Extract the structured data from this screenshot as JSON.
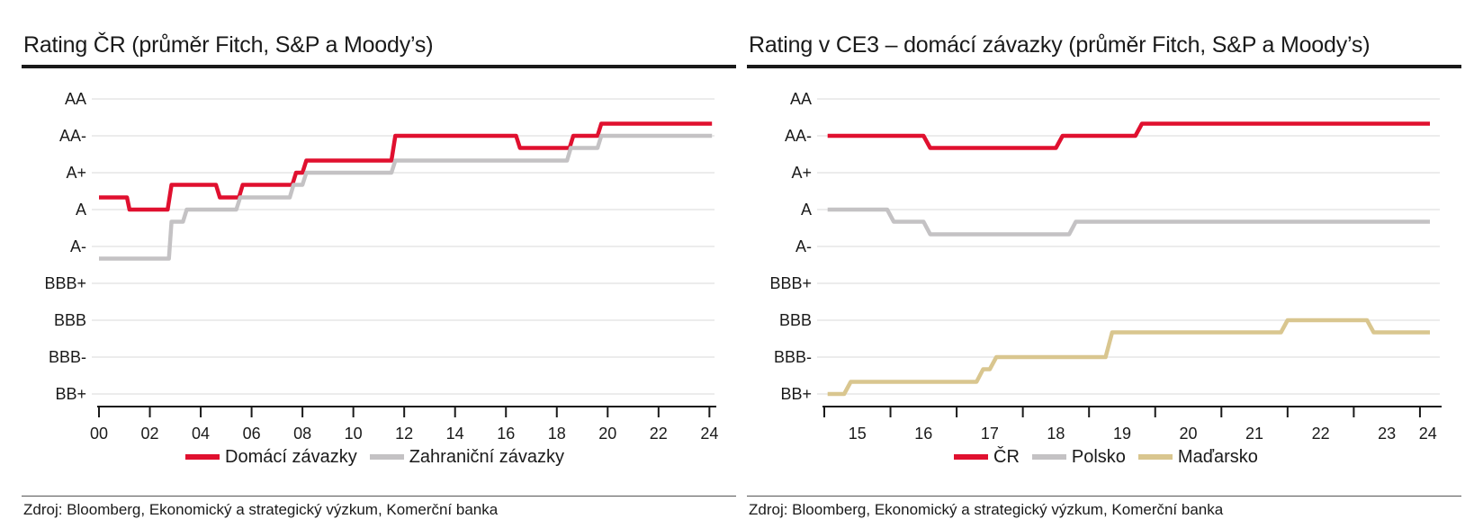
{
  "left": {
    "title": "Rating ČR (průměr Fitch, S&P a Moody’s)",
    "source": "Zdroj: Bloomberg, Ekonomický a strategický výzkum, Komerční banka",
    "legend": [
      {
        "name": "Domácí závazky",
        "color": "#e0102f"
      },
      {
        "name": "Zahraniční závazky",
        "color": "#c4c2c4"
      }
    ]
  },
  "right": {
    "title": "Rating v CE3 – domácí závazky (průměr Fitch, S&P a Moody’s)",
    "source": "Zdroj: Bloomberg, Ekonomický a strategický výzkum, Komerční banka",
    "legend": [
      {
        "name": "ČR",
        "color": "#e0102f"
      },
      {
        "name": "Polsko",
        "color": "#c4c2c4"
      },
      {
        "name": "Maďarsko",
        "color": "#d9c68f"
      }
    ]
  },
  "chart_data": [
    {
      "type": "line",
      "title": "Rating ČR (průměr Fitch, S&P a Moody’s)",
      "y_categories": [
        "BB+",
        "BBB-",
        "BBB",
        "BBB+",
        "A-",
        "A",
        "A+",
        "AA-",
        "AA"
      ],
      "x_ticks": [
        "00",
        "02",
        "04",
        "06",
        "08",
        "10",
        "12",
        "14",
        "16",
        "18",
        "20",
        "22",
        "24"
      ],
      "xlim": [
        2000,
        2024.2
      ],
      "ylim": [
        0,
        8
      ],
      "grid": true,
      "legend_position": "bottom",
      "series": [
        {
          "name": "Domácí závazky",
          "color": "#e0102f",
          "points": [
            [
              2000,
              5.33
            ],
            [
              2001.1,
              5.33
            ],
            [
              2001.2,
              5.0
            ],
            [
              2002.7,
              5.0
            ],
            [
              2002.85,
              5.67
            ],
            [
              2004.6,
              5.67
            ],
            [
              2004.75,
              5.33
            ],
            [
              2005.5,
              5.33
            ],
            [
              2005.65,
              5.67
            ],
            [
              2007.6,
              5.67
            ],
            [
              2007.75,
              6.0
            ],
            [
              2008.0,
              6.0
            ],
            [
              2008.15,
              6.33
            ],
            [
              2011.5,
              6.33
            ],
            [
              2011.65,
              7.0
            ],
            [
              2016.4,
              7.0
            ],
            [
              2016.55,
              6.67
            ],
            [
              2018.5,
              6.67
            ],
            [
              2018.65,
              7.0
            ],
            [
              2019.6,
              7.0
            ],
            [
              2019.75,
              7.33
            ],
            [
              2024.1,
              7.33
            ]
          ]
        },
        {
          "name": "Zahraniční závazky",
          "color": "#c4c2c4",
          "points": [
            [
              2000,
              3.67
            ],
            [
              2002.75,
              3.67
            ],
            [
              2002.85,
              4.67
            ],
            [
              2003.3,
              4.67
            ],
            [
              2003.45,
              5.0
            ],
            [
              2005.4,
              5.0
            ],
            [
              2005.55,
              5.33
            ],
            [
              2007.5,
              5.33
            ],
            [
              2007.65,
              5.67
            ],
            [
              2008.0,
              5.67
            ],
            [
              2008.15,
              6.0
            ],
            [
              2011.5,
              6.0
            ],
            [
              2011.65,
              6.33
            ],
            [
              2018.4,
              6.33
            ],
            [
              2018.55,
              6.67
            ],
            [
              2019.6,
              6.67
            ],
            [
              2019.75,
              7.0
            ],
            [
              2024.1,
              7.0
            ]
          ]
        }
      ]
    },
    {
      "type": "line",
      "title": "Rating v CE3 – domácí závazky (průměr Fitch, S&P a Moody’s)",
      "y_categories": [
        "BB+",
        "BBB-",
        "BBB",
        "BBB+",
        "A-",
        "A",
        "A+",
        "AA-",
        "AA"
      ],
      "x_ticks": [
        "15",
        "16",
        "17",
        "18",
        "19",
        "20",
        "21",
        "22",
        "23",
        "24"
      ],
      "xlim": [
        2015,
        2024.3
      ],
      "ylim": [
        0,
        8
      ],
      "grid": true,
      "legend_position": "bottom",
      "series": [
        {
          "name": "ČR",
          "color": "#e0102f",
          "points": [
            [
              2015.05,
              7.0
            ],
            [
              2016.5,
              7.0
            ],
            [
              2016.6,
              6.67
            ],
            [
              2018.5,
              6.67
            ],
            [
              2018.6,
              7.0
            ],
            [
              2019.7,
              7.0
            ],
            [
              2019.8,
              7.33
            ],
            [
              2024.15,
              7.33
            ]
          ]
        },
        {
          "name": "Polsko",
          "color": "#c4c2c4",
          "points": [
            [
              2015.05,
              5.0
            ],
            [
              2015.95,
              5.0
            ],
            [
              2016.05,
              4.67
            ],
            [
              2016.5,
              4.67
            ],
            [
              2016.6,
              4.33
            ],
            [
              2018.7,
              4.33
            ],
            [
              2018.8,
              4.67
            ],
            [
              2024.15,
              4.67
            ]
          ]
        },
        {
          "name": "Maďarsko",
          "color": "#d9c68f",
          "points": [
            [
              2015.05,
              0.0
            ],
            [
              2015.3,
              0.0
            ],
            [
              2015.4,
              0.33
            ],
            [
              2017.3,
              0.33
            ],
            [
              2017.4,
              0.67
            ],
            [
              2017.5,
              0.67
            ],
            [
              2017.6,
              1.0
            ],
            [
              2019.25,
              1.0
            ],
            [
              2019.35,
              1.67
            ],
            [
              2021.9,
              1.67
            ],
            [
              2022.0,
              2.0
            ],
            [
              2023.2,
              2.0
            ],
            [
              2023.3,
              1.67
            ],
            [
              2024.15,
              1.67
            ]
          ]
        }
      ]
    }
  ]
}
